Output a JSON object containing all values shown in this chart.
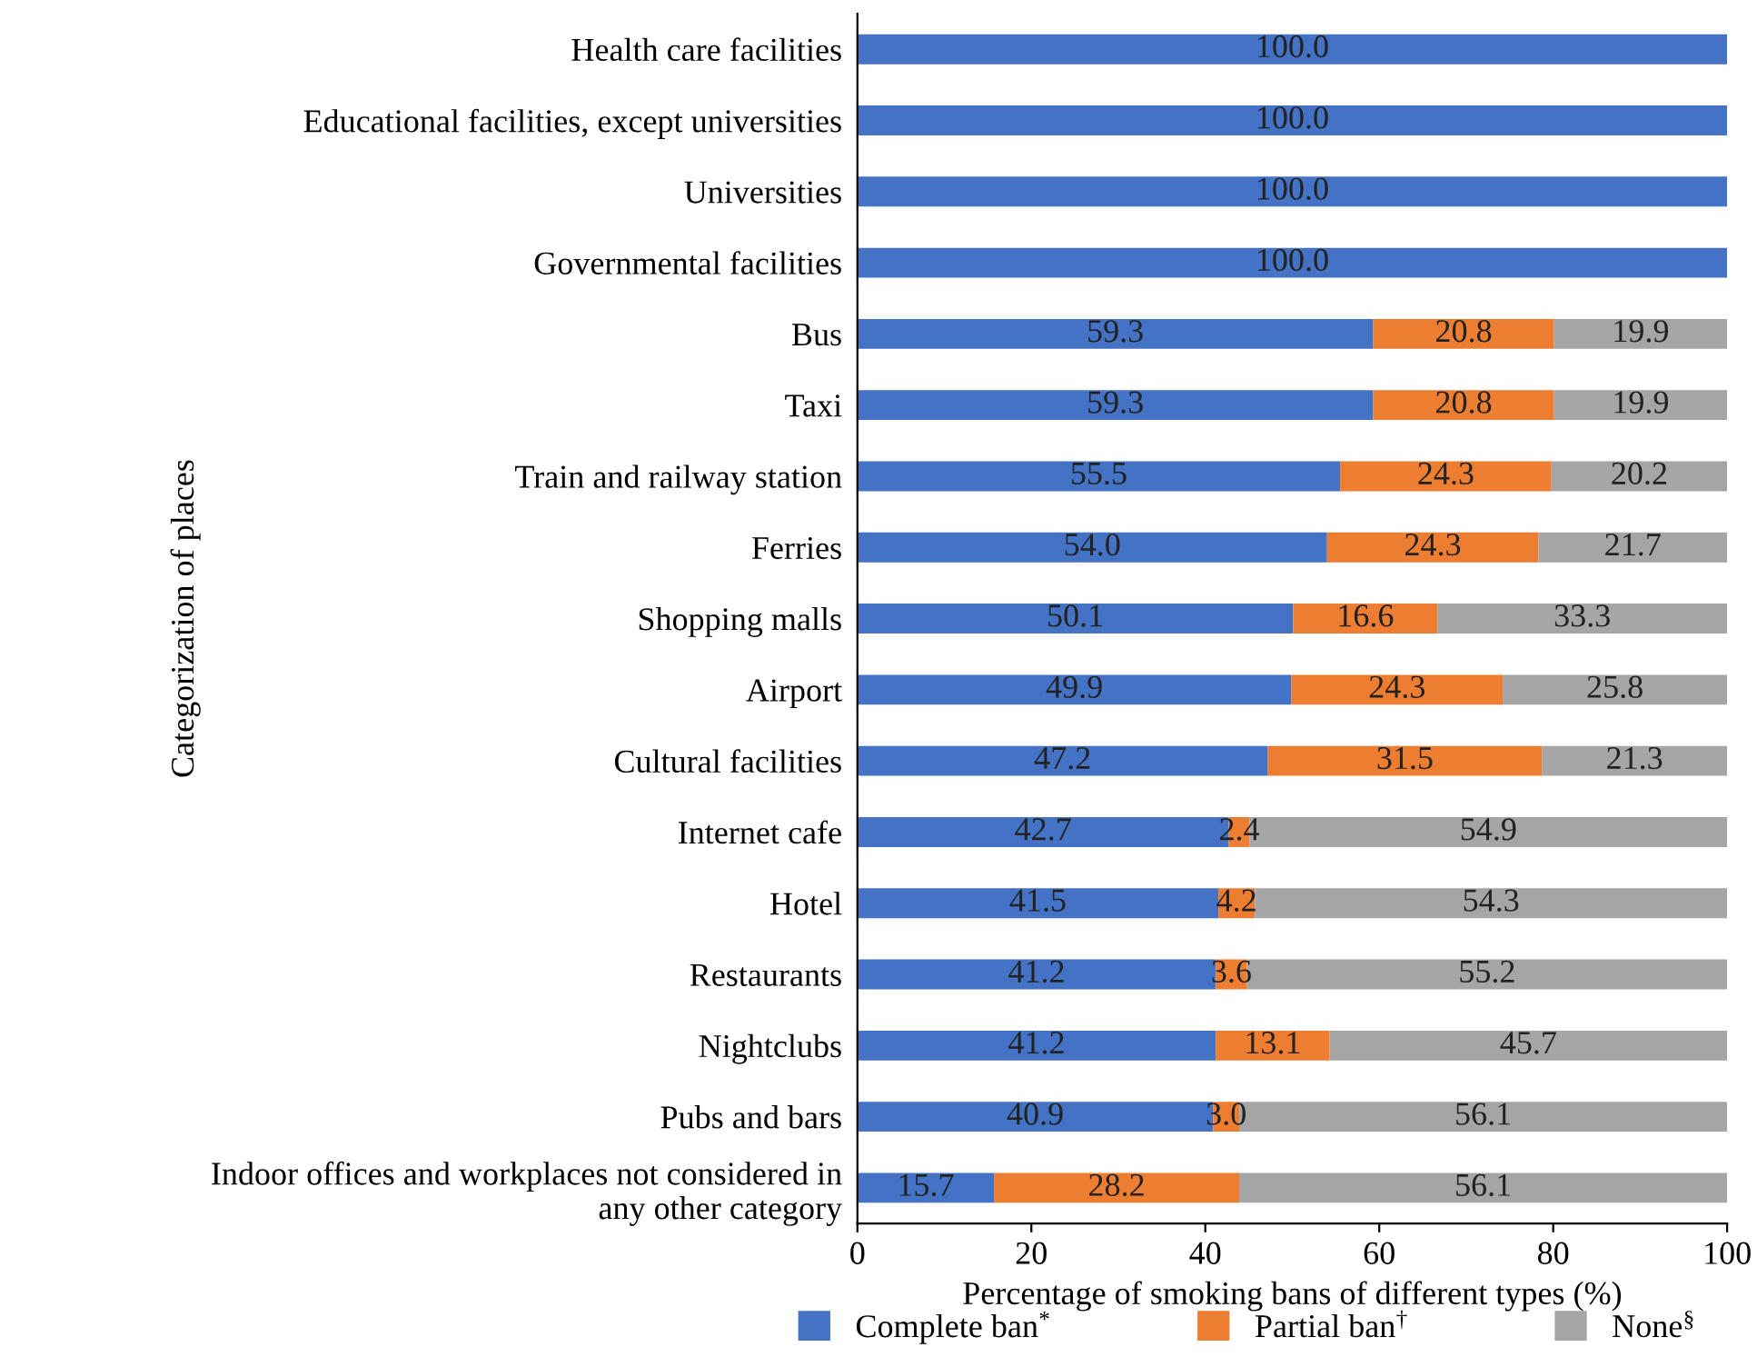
{
  "chart_data": {
    "type": "bar",
    "orientation": "horizontal",
    "stacked": true,
    "xlabel": "Percentage of smoking bans of different types (%)",
    "ylabel": "Categorization of places",
    "categories": [
      "Health care facilities",
      "Educational facilities, except universities",
      "Universities",
      "Governmental facilities",
      "Bus",
      "Taxi",
      "Train and railway station",
      "Ferries",
      "Shopping malls",
      "Airport",
      "Cultural facilities",
      "Internet cafe",
      "Hotel",
      "Restaurants",
      "Nightclubs",
      "Pubs and bars",
      "Indoor offices and workplaces not considered in\nany other category"
    ],
    "series": [
      {
        "name": "Complete ban$^{*}$",
        "color": "#4472c4",
        "values": [
          100.0,
          100.0,
          100.0,
          100.0,
          59.3,
          59.3,
          55.5,
          54.0,
          50.1,
          49.9,
          47.2,
          42.7,
          41.5,
          41.2,
          41.2,
          40.9,
          15.7
        ],
        "value_labels": [
          "100.0",
          "100.0",
          "100.0",
          "100.0",
          "59.3",
          "59.3",
          "55.5",
          "54.0",
          "50.1",
          "49.9",
          "47.2",
          "42.7",
          "41.5",
          "41.2",
          "41.2",
          "40.9",
          "15.7"
        ]
      },
      {
        "name": "Partial ban$^{†}$",
        "color": "#ed7d31",
        "values": [
          null,
          null,
          null,
          null,
          20.8,
          20.8,
          24.3,
          24.3,
          16.6,
          24.3,
          31.5,
          2.4,
          4.2,
          3.6,
          13.1,
          3.0,
          28.2
        ],
        "value_labels": [
          null,
          null,
          null,
          null,
          "20.8",
          "20.8",
          "24.3",
          "24.3",
          "16.6",
          "24.3",
          "31.5",
          "2.4",
          "4.2",
          "3.6",
          "13.1",
          "3.0",
          "28.2"
        ]
      },
      {
        "name": "None$^{§}$",
        "color": "#a5a5a5",
        "values": [
          null,
          null,
          null,
          null,
          19.9,
          19.9,
          20.2,
          21.7,
          33.3,
          25.8,
          21.3,
          54.9,
          54.3,
          55.2,
          45.7,
          56.1,
          56.1
        ],
        "value_labels": [
          null,
          null,
          null,
          null,
          "19.9",
          "19.9",
          "20.2",
          "21.7",
          "33.3",
          "25.8",
          "21.3",
          "54.9",
          "54.3",
          "55.2",
          "45.7",
          "56.1",
          "56.1"
        ]
      }
    ],
    "xlim": [
      0,
      100
    ],
    "xticks": [
      0,
      20,
      40,
      60,
      80,
      100
    ],
    "grid": false,
    "legend": "bottom"
  }
}
